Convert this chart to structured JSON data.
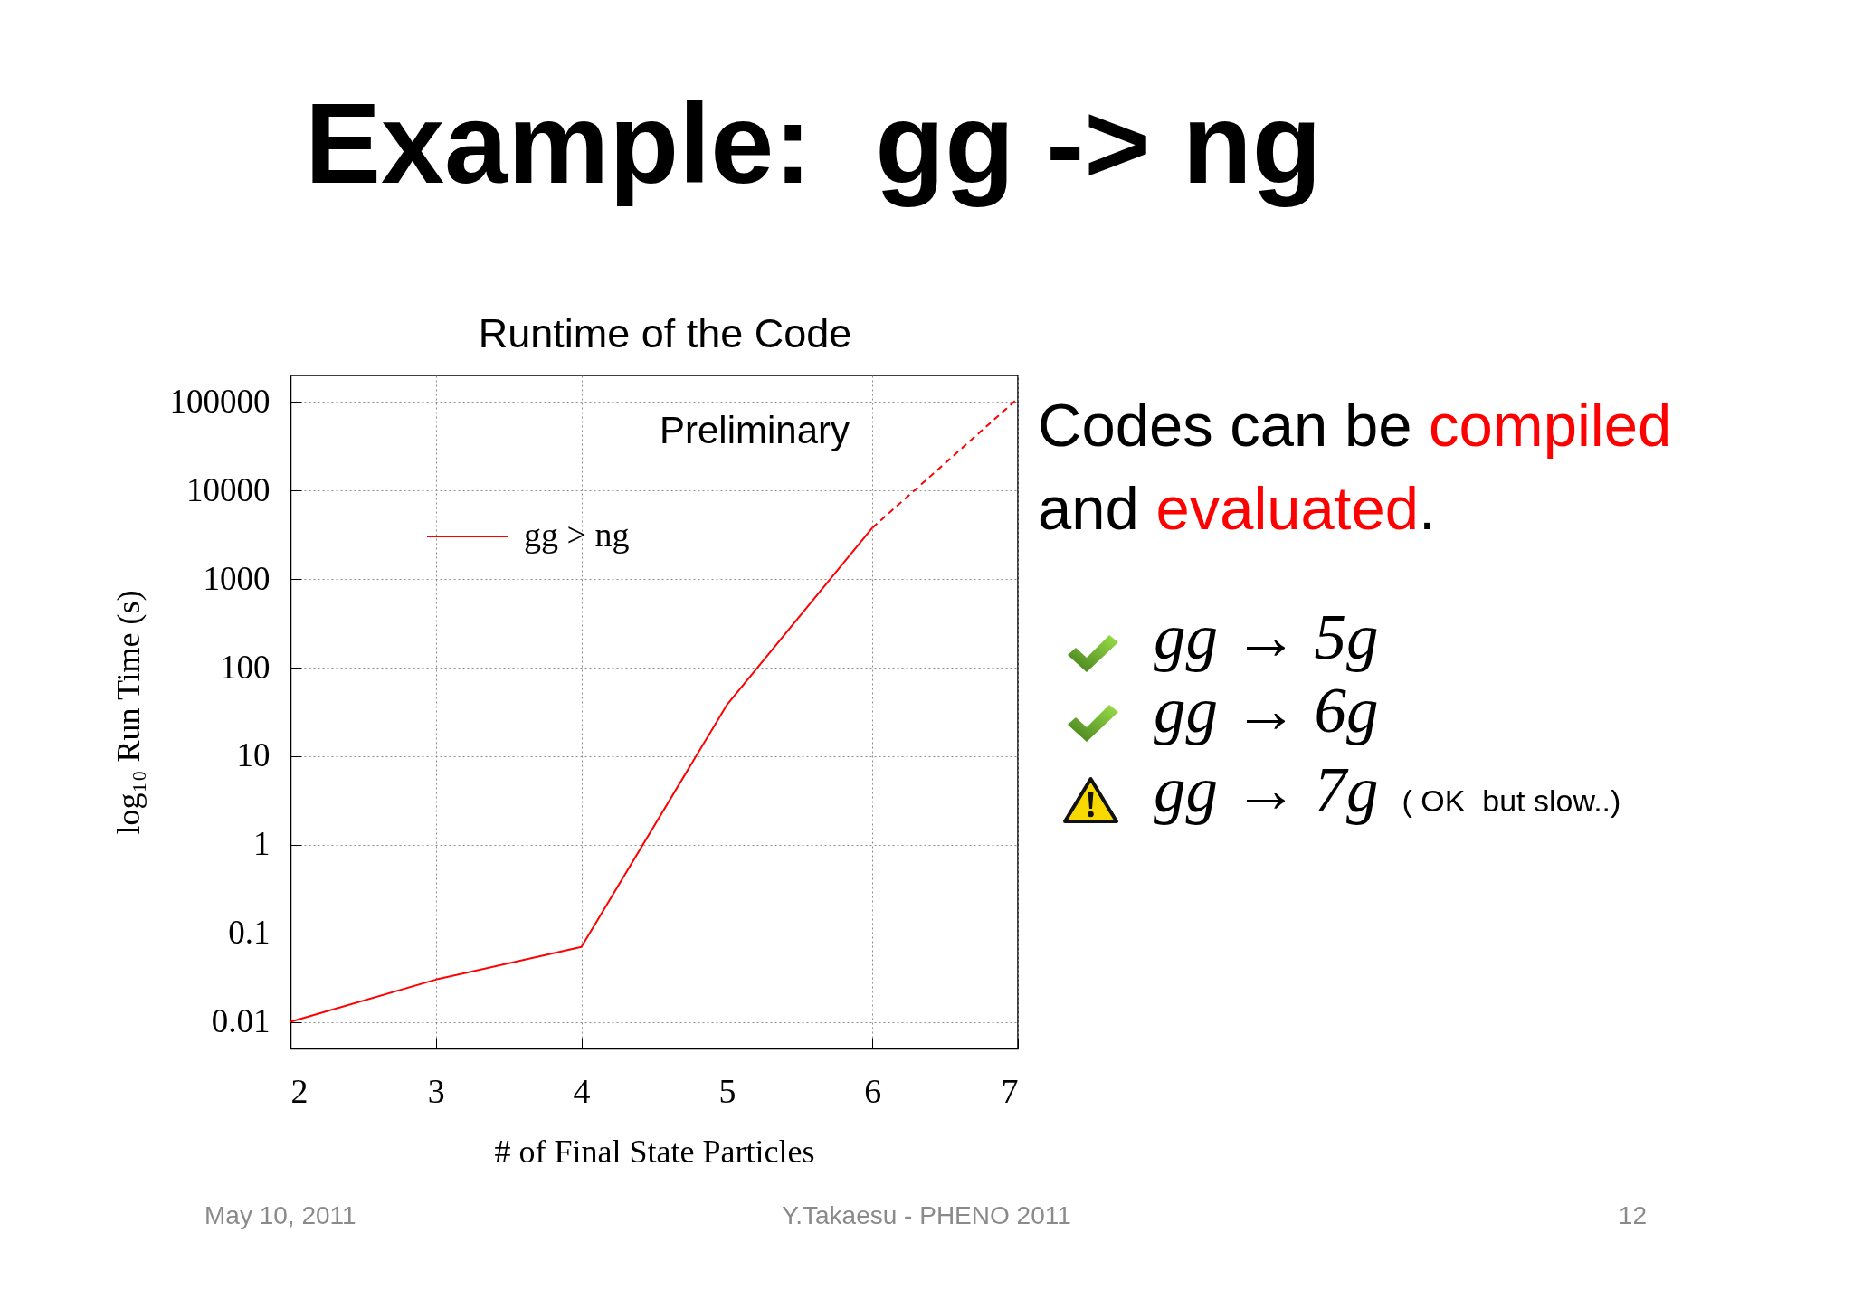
{
  "chart_data": [
    {
      "type": "line",
      "title": "Example:  gg -> ng",
      "subtitle": "Runtime of the Code",
      "xlabel": "# of Final State Particles",
      "ylabel": "log₁₀ Run Time (s)",
      "xlim": [
        2,
        7
      ],
      "xticks": [
        2,
        3,
        4,
        5,
        6,
        7
      ],
      "ylim": [
        0.005,
        200000
      ],
      "yticks": [
        0.01,
        0.1,
        1,
        10,
        100,
        1000,
        10000,
        100000
      ],
      "log": "y",
      "grid": true,
      "legend": "top left",
      "series": [
        {
          "name": "gg > ng",
          "color": "#ff0000",
          "x": [
            2,
            3,
            4,
            5,
            6
          ],
          "values": [
            0.01,
            0.03,
            0.07,
            38,
            3800
          ],
          "line_style": "solid"
        },
        {
          "color": "#ff0000",
          "x": [
            6,
            7
          ],
          "values": [
            3800,
            110000
          ],
          "line_style": "dashed"
        }
      ],
      "annotations": [
        "Preliminary",
        "May 10, 2011",
        "Y.Takaesu - PHENO 2011",
        "12"
      ]
    },
    {
      "type": "other",
      "annotations": [
        "Codes can be",
        "compiled",
        "and",
        "evaluated",
        ".",
        "gg → 5g",
        "gg → 6g",
        "gg → 7g",
        "( OK  but slow..)"
      ]
    }
  ]
}
